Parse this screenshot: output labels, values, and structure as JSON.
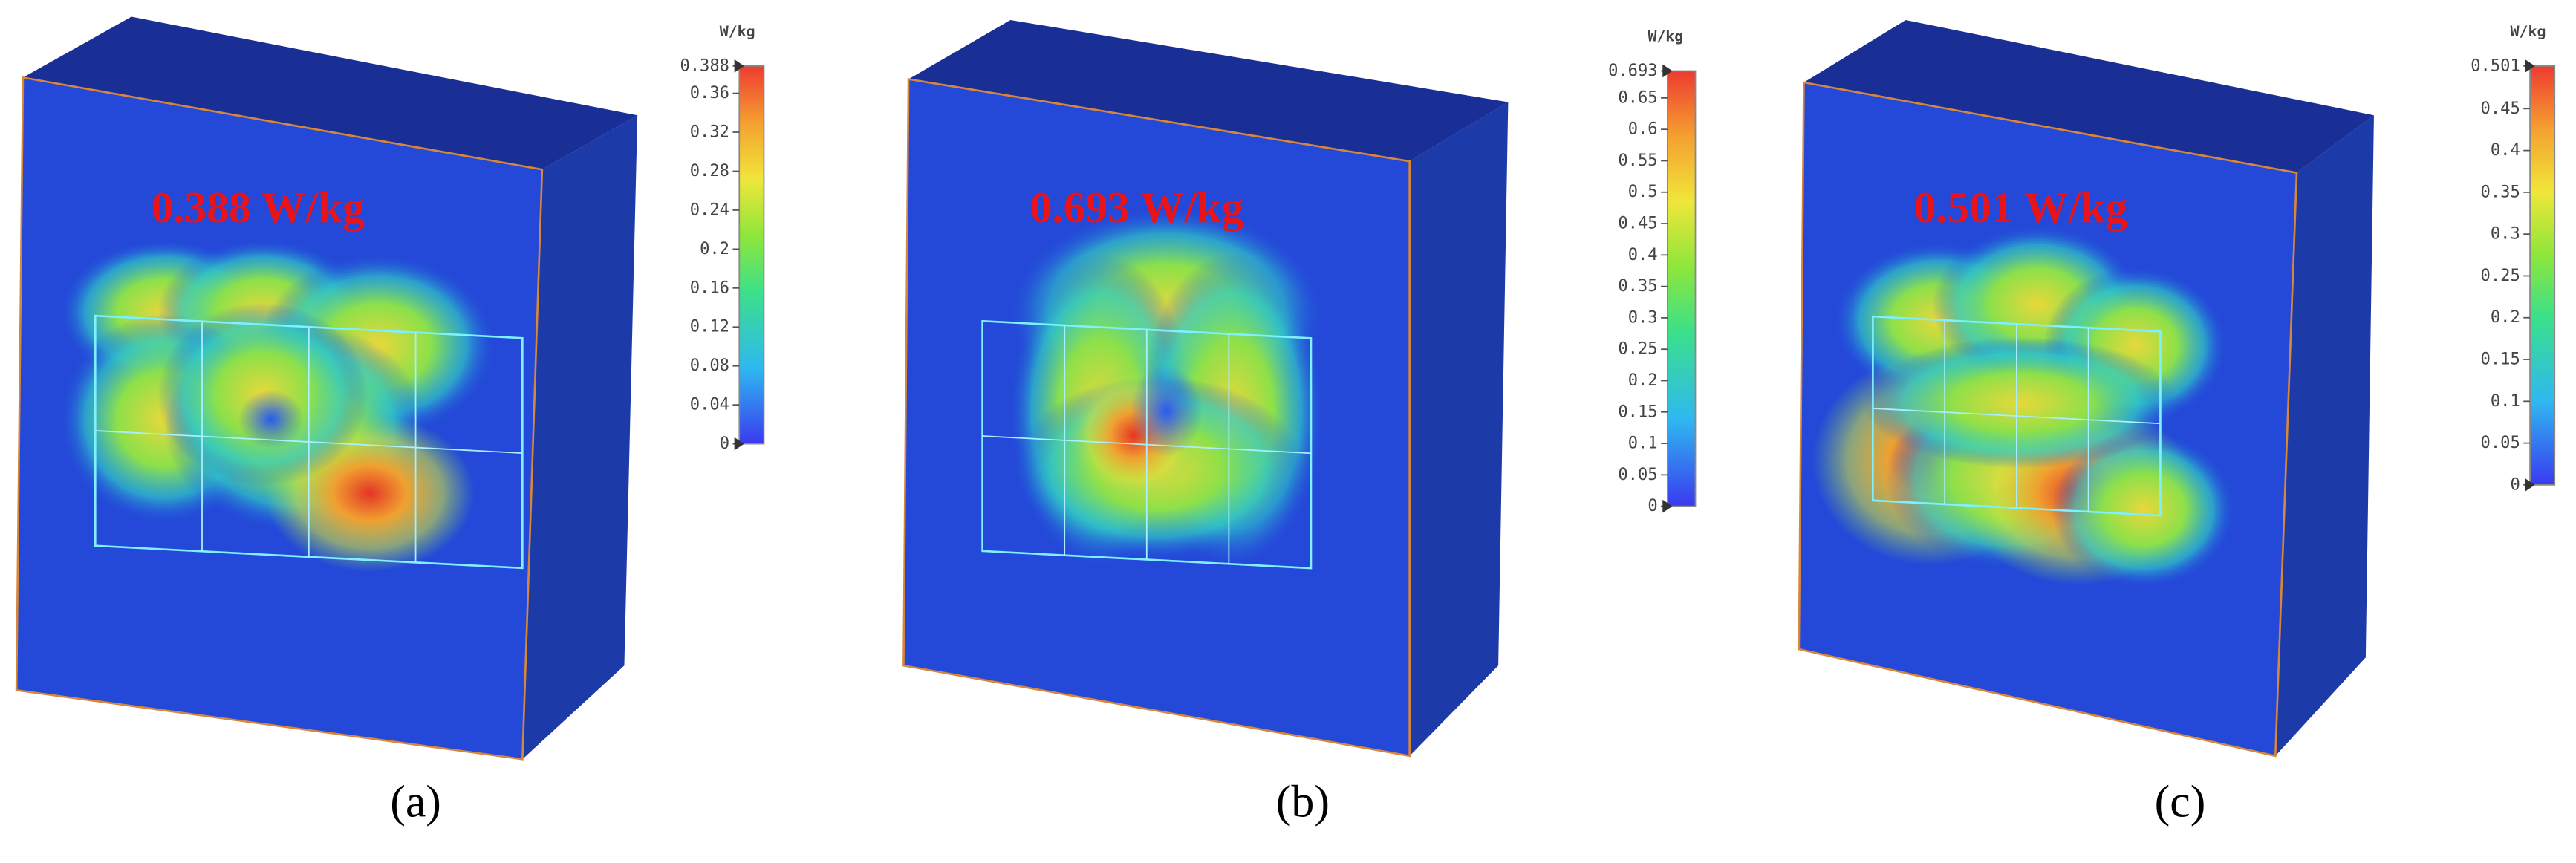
{
  "panels": [
    {
      "label": "(a)",
      "annotation": "0.388 W/kg",
      "colorbar": {
        "unit": "W/kg",
        "ticks": [
          "0.388",
          "0.36",
          "0.32",
          "0.28",
          "0.24",
          "0.2",
          "0.16",
          "0.12",
          "0.08",
          "0.04",
          "0"
        ]
      }
    },
    {
      "label": "(b)",
      "annotation": "0.693 W/kg",
      "colorbar": {
        "unit": "W/kg",
        "ticks": [
          "0.693",
          "0.65",
          "0.6",
          "0.55",
          "0.5",
          "0.45",
          "0.4",
          "0.35",
          "0.3",
          "0.25",
          "0.2",
          "0.15",
          "0.1",
          "0.05",
          "0"
        ]
      }
    },
    {
      "label": "(c)",
      "annotation": "0.501 W/kg",
      "colorbar": {
        "unit": "W/kg",
        "ticks": [
          "0.501",
          "0.45",
          "0.4",
          "0.35",
          "0.3",
          "0.25",
          "0.2",
          "0.15",
          "0.1",
          "0.05",
          "0"
        ]
      }
    }
  ]
}
